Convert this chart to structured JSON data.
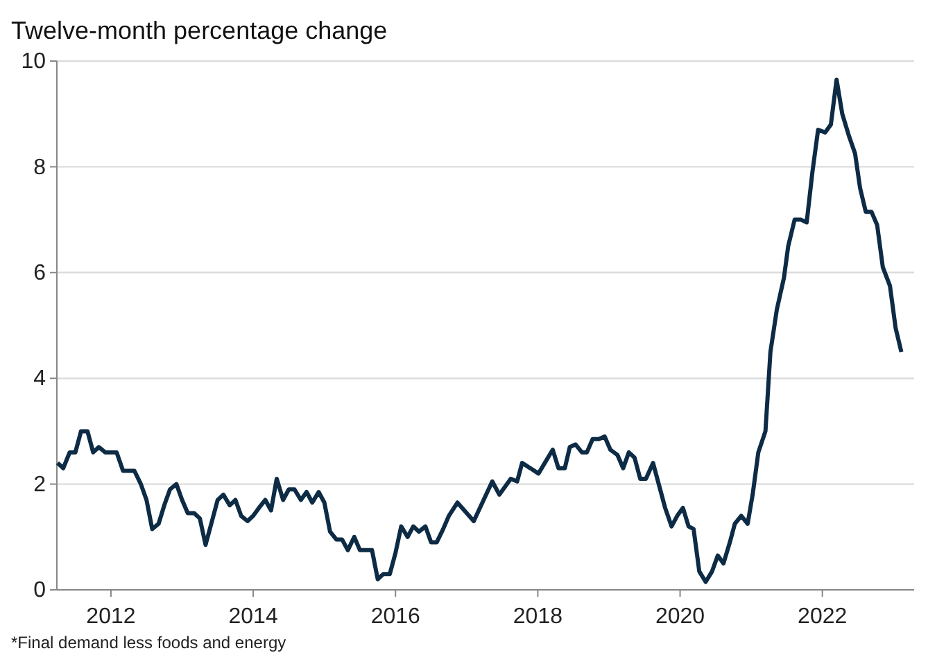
{
  "chart_data": {
    "type": "line",
    "ylabel": "Twelve-month percentage change",
    "annotations": [
      "*Final demand less foods and energy"
    ],
    "xlim": [
      2011.24,
      2023.29
    ],
    "xticks": [
      2012,
      2014,
      2016,
      2018,
      2020,
      2022
    ],
    "ylim": [
      0,
      10
    ],
    "yticks": [
      0,
      2,
      4,
      6,
      8,
      10
    ],
    "grid": "y",
    "marker": "none",
    "line_style": "solid",
    "series": [
      {
        "color": "#0d2b45",
        "x": [
          2011.25,
          2011.33,
          2011.42,
          2011.5,
          2011.58,
          2011.67,
          2011.75,
          2011.83,
          2011.92,
          2012.0,
          2012.08,
          2012.17,
          2012.25,
          2012.33,
          2012.42,
          2012.5,
          2012.58,
          2012.67,
          2012.75,
          2012.83,
          2012.92,
          2013.0,
          2013.08,
          2013.17,
          2013.25,
          2013.33,
          2013.42,
          2013.5,
          2013.58,
          2013.67,
          2013.75,
          2013.83,
          2013.92,
          2014.0,
          2014.08,
          2014.17,
          2014.25,
          2014.33,
          2014.42,
          2014.5,
          2014.58,
          2014.67,
          2014.75,
          2014.83,
          2014.92,
          2015.0,
          2015.08,
          2015.17,
          2015.25,
          2015.33,
          2015.42,
          2015.5,
          2015.58,
          2015.67,
          2015.75,
          2015.83,
          2015.92,
          2016.0,
          2016.08,
          2016.17,
          2016.25,
          2016.33,
          2016.42,
          2016.5,
          2016.58,
          2016.67,
          2016.75,
          2016.87,
          2017.1,
          2017.36,
          2017.46,
          2017.62,
          2017.71,
          2017.78,
          2018.01,
          2018.21,
          2018.29,
          2018.38,
          2018.45,
          2018.53,
          2018.62,
          2018.69,
          2018.77,
          2018.86,
          2018.94,
          2019.02,
          2019.12,
          2019.2,
          2019.28,
          2019.36,
          2019.44,
          2019.52,
          2019.62,
          2019.7,
          2019.79,
          2019.88,
          2019.96,
          2020.04,
          2020.12,
          2020.19,
          2020.27,
          2020.36,
          2020.45,
          2020.53,
          2020.61,
          2020.7,
          2020.77,
          2020.86,
          2020.95,
          2021.02,
          2021.1,
          2021.2,
          2021.27,
          2021.36,
          2021.46,
          2021.52,
          2021.61,
          2021.7,
          2021.78,
          2021.86,
          2021.94,
          2022.04,
          2022.12,
          2022.2,
          2022.28,
          2022.37,
          2022.46,
          2022.53,
          2022.61,
          2022.69,
          2022.77,
          2022.85,
          2022.95,
          2023.03,
          2023.11
        ],
        "values": [
          2.4,
          2.3,
          2.6,
          2.6,
          3.0,
          3.0,
          2.6,
          2.7,
          2.6,
          2.6,
          2.6,
          2.25,
          2.25,
          2.25,
          2.0,
          1.7,
          1.15,
          1.25,
          1.6,
          1.9,
          2.0,
          1.7,
          1.45,
          1.45,
          1.35,
          0.85,
          1.3,
          1.7,
          1.8,
          1.6,
          1.7,
          1.4,
          1.3,
          1.4,
          1.55,
          1.7,
          1.5,
          2.1,
          1.7,
          1.9,
          1.9,
          1.7,
          1.85,
          1.65,
          1.85,
          1.65,
          1.1,
          0.95,
          0.95,
          0.75,
          1.0,
          0.75,
          0.75,
          0.75,
          0.2,
          0.3,
          0.3,
          0.7,
          1.2,
          1.0,
          1.2,
          1.1,
          1.2,
          0.9,
          0.9,
          1.15,
          1.4,
          1.65,
          1.3,
          2.05,
          1.8,
          2.1,
          2.05,
          2.4,
          2.2,
          2.65,
          2.3,
          2.3,
          2.7,
          2.75,
          2.6,
          2.6,
          2.85,
          2.85,
          2.9,
          2.65,
          2.55,
          2.3,
          2.6,
          2.5,
          2.1,
          2.1,
          2.4,
          2.0,
          1.55,
          1.2,
          1.4,
          1.55,
          1.2,
          1.15,
          0.35,
          0.15,
          0.35,
          0.65,
          0.5,
          0.9,
          1.25,
          1.4,
          1.25,
          1.8,
          2.6,
          3.0,
          4.5,
          5.3,
          5.9,
          6.5,
          7.0,
          7.0,
          6.95,
          7.9,
          8.7,
          8.65,
          8.8,
          9.65,
          9.0,
          8.6,
          8.25,
          7.6,
          7.15,
          7.15,
          6.9,
          6.1,
          5.75,
          4.95,
          4.5
        ]
      }
    ]
  }
}
